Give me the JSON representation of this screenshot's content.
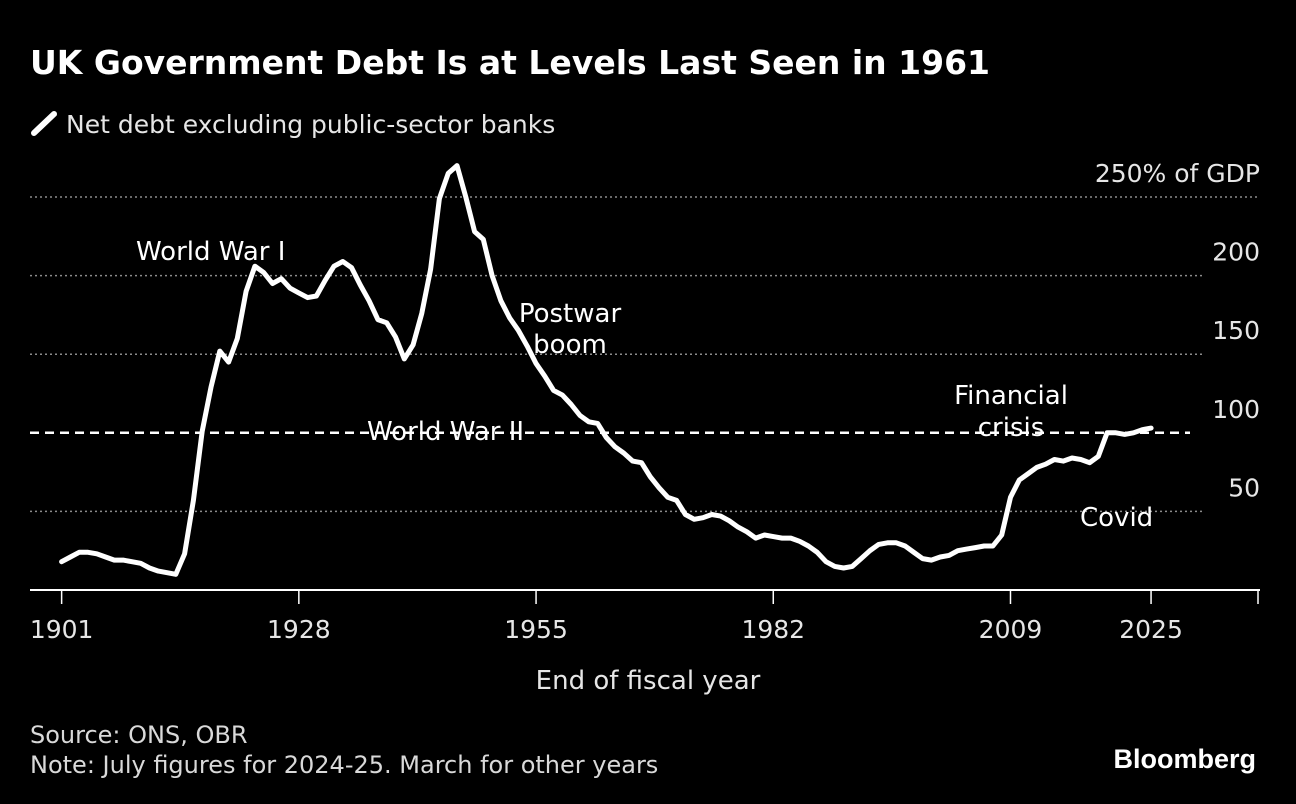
{
  "chart_data": {
    "type": "line",
    "title": "UK Government Debt Is at Levels Last Seen in 1961",
    "legend": [
      {
        "name": "Net debt excluding public-sector banks"
      }
    ],
    "xlabel": "End of fiscal year",
    "ylabel": "% of GDP",
    "xlim": [
      1897.4,
      2037.4
    ],
    "ylim": [
      0,
      250
    ],
    "xticks": [
      1901,
      1928,
      1955,
      1982,
      2009,
      2025
    ],
    "yticks": [
      50,
      100,
      150,
      200,
      250
    ],
    "ytick_labels": [
      "50",
      "100",
      "150",
      "200",
      "250% of GDP"
    ],
    "reference_line": {
      "value": 100,
      "style": "dashed"
    },
    "series": [
      {
        "name": "Net debt excluding public-sector banks",
        "x": [
          1901,
          1902,
          1903,
          1904,
          1905,
          1906,
          1907,
          1908,
          1909,
          1910,
          1911,
          1912,
          1913,
          1914,
          1915,
          1916,
          1917,
          1918,
          1919,
          1920,
          1921,
          1922,
          1923,
          1924,
          1925,
          1926,
          1927,
          1928,
          1929,
          1930,
          1931,
          1932,
          1933,
          1934,
          1935,
          1936,
          1937,
          1938,
          1939,
          1940,
          1941,
          1942,
          1943,
          1944,
          1945,
          1946,
          1947,
          1948,
          1949,
          1950,
          1951,
          1952,
          1953,
          1954,
          1955,
          1956,
          1957,
          1958,
          1959,
          1960,
          1961,
          1962,
          1963,
          1964,
          1965,
          1966,
          1967,
          1968,
          1969,
          1970,
          1971,
          1972,
          1973,
          1974,
          1975,
          1976,
          1977,
          1978,
          1979,
          1980,
          1981,
          1982,
          1983,
          1984,
          1985,
          1986,
          1987,
          1988,
          1989,
          1990,
          1991,
          1992,
          1993,
          1994,
          1995,
          1996,
          1997,
          1998,
          1999,
          2000,
          2001,
          2002,
          2003,
          2004,
          2005,
          2006,
          2007,
          2008,
          2009,
          2010,
          2011,
          2012,
          2013,
          2014,
          2015,
          2016,
          2017,
          2018,
          2019,
          2020,
          2021,
          2022,
          2023,
          2024,
          2025
        ],
        "values": [
          18,
          21,
          24,
          24,
          23,
          21,
          19,
          19,
          18,
          17,
          14,
          12,
          11,
          10,
          23,
          57,
          101,
          129,
          152,
          145,
          160,
          190,
          206,
          202,
          195,
          198,
          192,
          189,
          186,
          187,
          197,
          206,
          209,
          205,
          194,
          184,
          172,
          170,
          161,
          147,
          156,
          176,
          204,
          249,
          265,
          270,
          250,
          228,
          223,
          200,
          184,
          173,
          165,
          155,
          144,
          136,
          127,
          124,
          118,
          111,
          107,
          106,
          97,
          91,
          87,
          82,
          81,
          72,
          65,
          59,
          57,
          48,
          45,
          46,
          48,
          47,
          44,
          40,
          37,
          33,
          35,
          34,
          33,
          33,
          31,
          28,
          24,
          18,
          15,
          14,
          15,
          20,
          25,
          29,
          30,
          30,
          28,
          24,
          20,
          19,
          21,
          22,
          25,
          26,
          27,
          28,
          28,
          35,
          59,
          70,
          74,
          78,
          80,
          83,
          82,
          84,
          83,
          81,
          85,
          100,
          100,
          99,
          100,
          102,
          103
        ]
      }
    ],
    "annotations": [
      {
        "label": "World War I"
      },
      {
        "label": "World War II"
      },
      {
        "line1": "Postwar",
        "line2": "boom"
      },
      {
        "line1": "Financial",
        "line2": "crisis"
      },
      {
        "label": "Covid"
      }
    ]
  },
  "footer": {
    "source": "Source: ONS, OBR",
    "note": "Note: July figures for 2024-25. March for other years",
    "brand": "Bloomberg"
  },
  "colors": {
    "background": "#000000",
    "line": "#ffffff",
    "grid": "#8c8c8c",
    "text": "#e6e6e6"
  }
}
